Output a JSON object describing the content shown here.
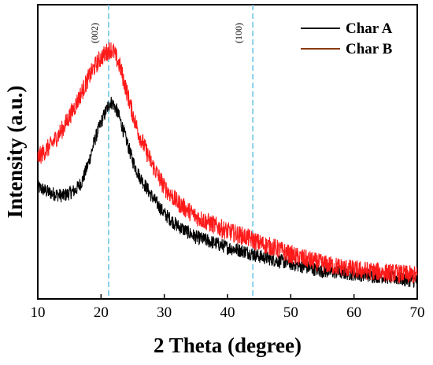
{
  "chart_data": {
    "type": "line",
    "xlabel": "2 Theta (degree)",
    "ylabel": "Intensity (a.u.)",
    "xlim": [
      10,
      70
    ],
    "ylim": [
      0,
      100
    ],
    "xticks": [
      "10",
      "20",
      "30",
      "40",
      "50",
      "60",
      "70"
    ],
    "grid": false,
    "legend_position": "top-right",
    "reference_lines": [
      {
        "x": 21.2,
        "label": "(002)",
        "color": "#6ec6e6"
      },
      {
        "x": 44.0,
        "label": "(100)",
        "color": "#6ec6e6"
      }
    ],
    "series": [
      {
        "name": "Char A",
        "legend_color": "#000000",
        "color": "#000000",
        "x": [
          10,
          12,
          14,
          16,
          17,
          18,
          19,
          20,
          21,
          21.5,
          22,
          22.5,
          23,
          24,
          25,
          26,
          28,
          30,
          32,
          35,
          38,
          40,
          43,
          45,
          48,
          50,
          55,
          60,
          65,
          70
        ],
        "y": [
          38,
          36,
          35,
          37,
          40,
          46,
          54,
          60,
          65,
          67,
          66,
          64,
          61,
          54,
          47,
          42,
          35,
          29,
          25,
          21,
          19,
          17.5,
          16,
          14.5,
          13,
          12,
          9.5,
          8.5,
          7.5,
          6
        ]
      },
      {
        "name": "Char B",
        "legend_color": "#8b3a0f",
        "color": "#ff1a1a",
        "x": [
          10,
          12,
          14,
          16,
          18,
          19,
          20,
          21,
          21.5,
          22,
          23,
          24,
          25,
          26,
          28,
          30,
          32,
          35,
          38,
          40,
          43,
          45,
          48,
          50,
          55,
          60,
          65,
          70
        ],
        "y": [
          48,
          52,
          58,
          66,
          75,
          79,
          82,
          84,
          85,
          84,
          79,
          71,
          63,
          56,
          46,
          38,
          33,
          28,
          25,
          23,
          21,
          19,
          17,
          15,
          12,
          10,
          9,
          8
        ]
      }
    ]
  }
}
